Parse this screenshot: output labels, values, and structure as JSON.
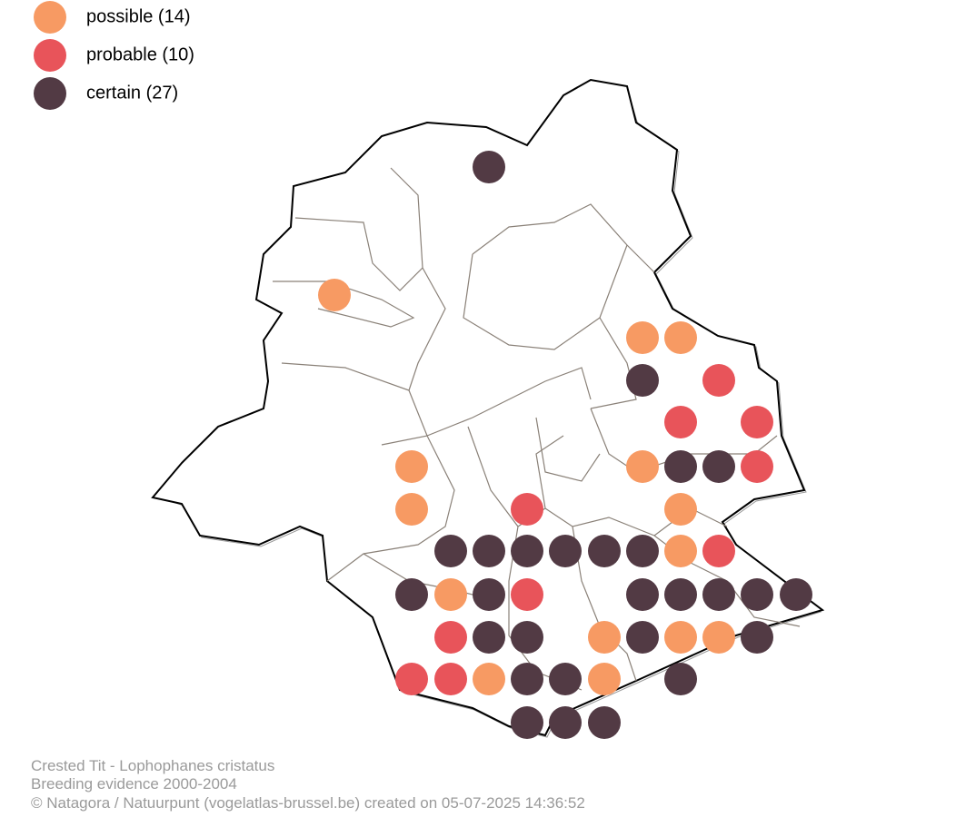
{
  "legend": [
    {
      "label": "possible (14)",
      "color": "#f79a63"
    },
    {
      "label": "probable (10)",
      "color": "#e8545a"
    },
    {
      "label": "certain (27)",
      "color": "#523a44"
    }
  ],
  "footer": {
    "title": "Crested Tit - Lophophanes cristatus",
    "subtitle": "Breeding evidence 2000-2004",
    "credit": "© Natagora / Natuurpunt (vogelatlas-brussel.be) created on 05-07-2025 14:36:52"
  }
}
